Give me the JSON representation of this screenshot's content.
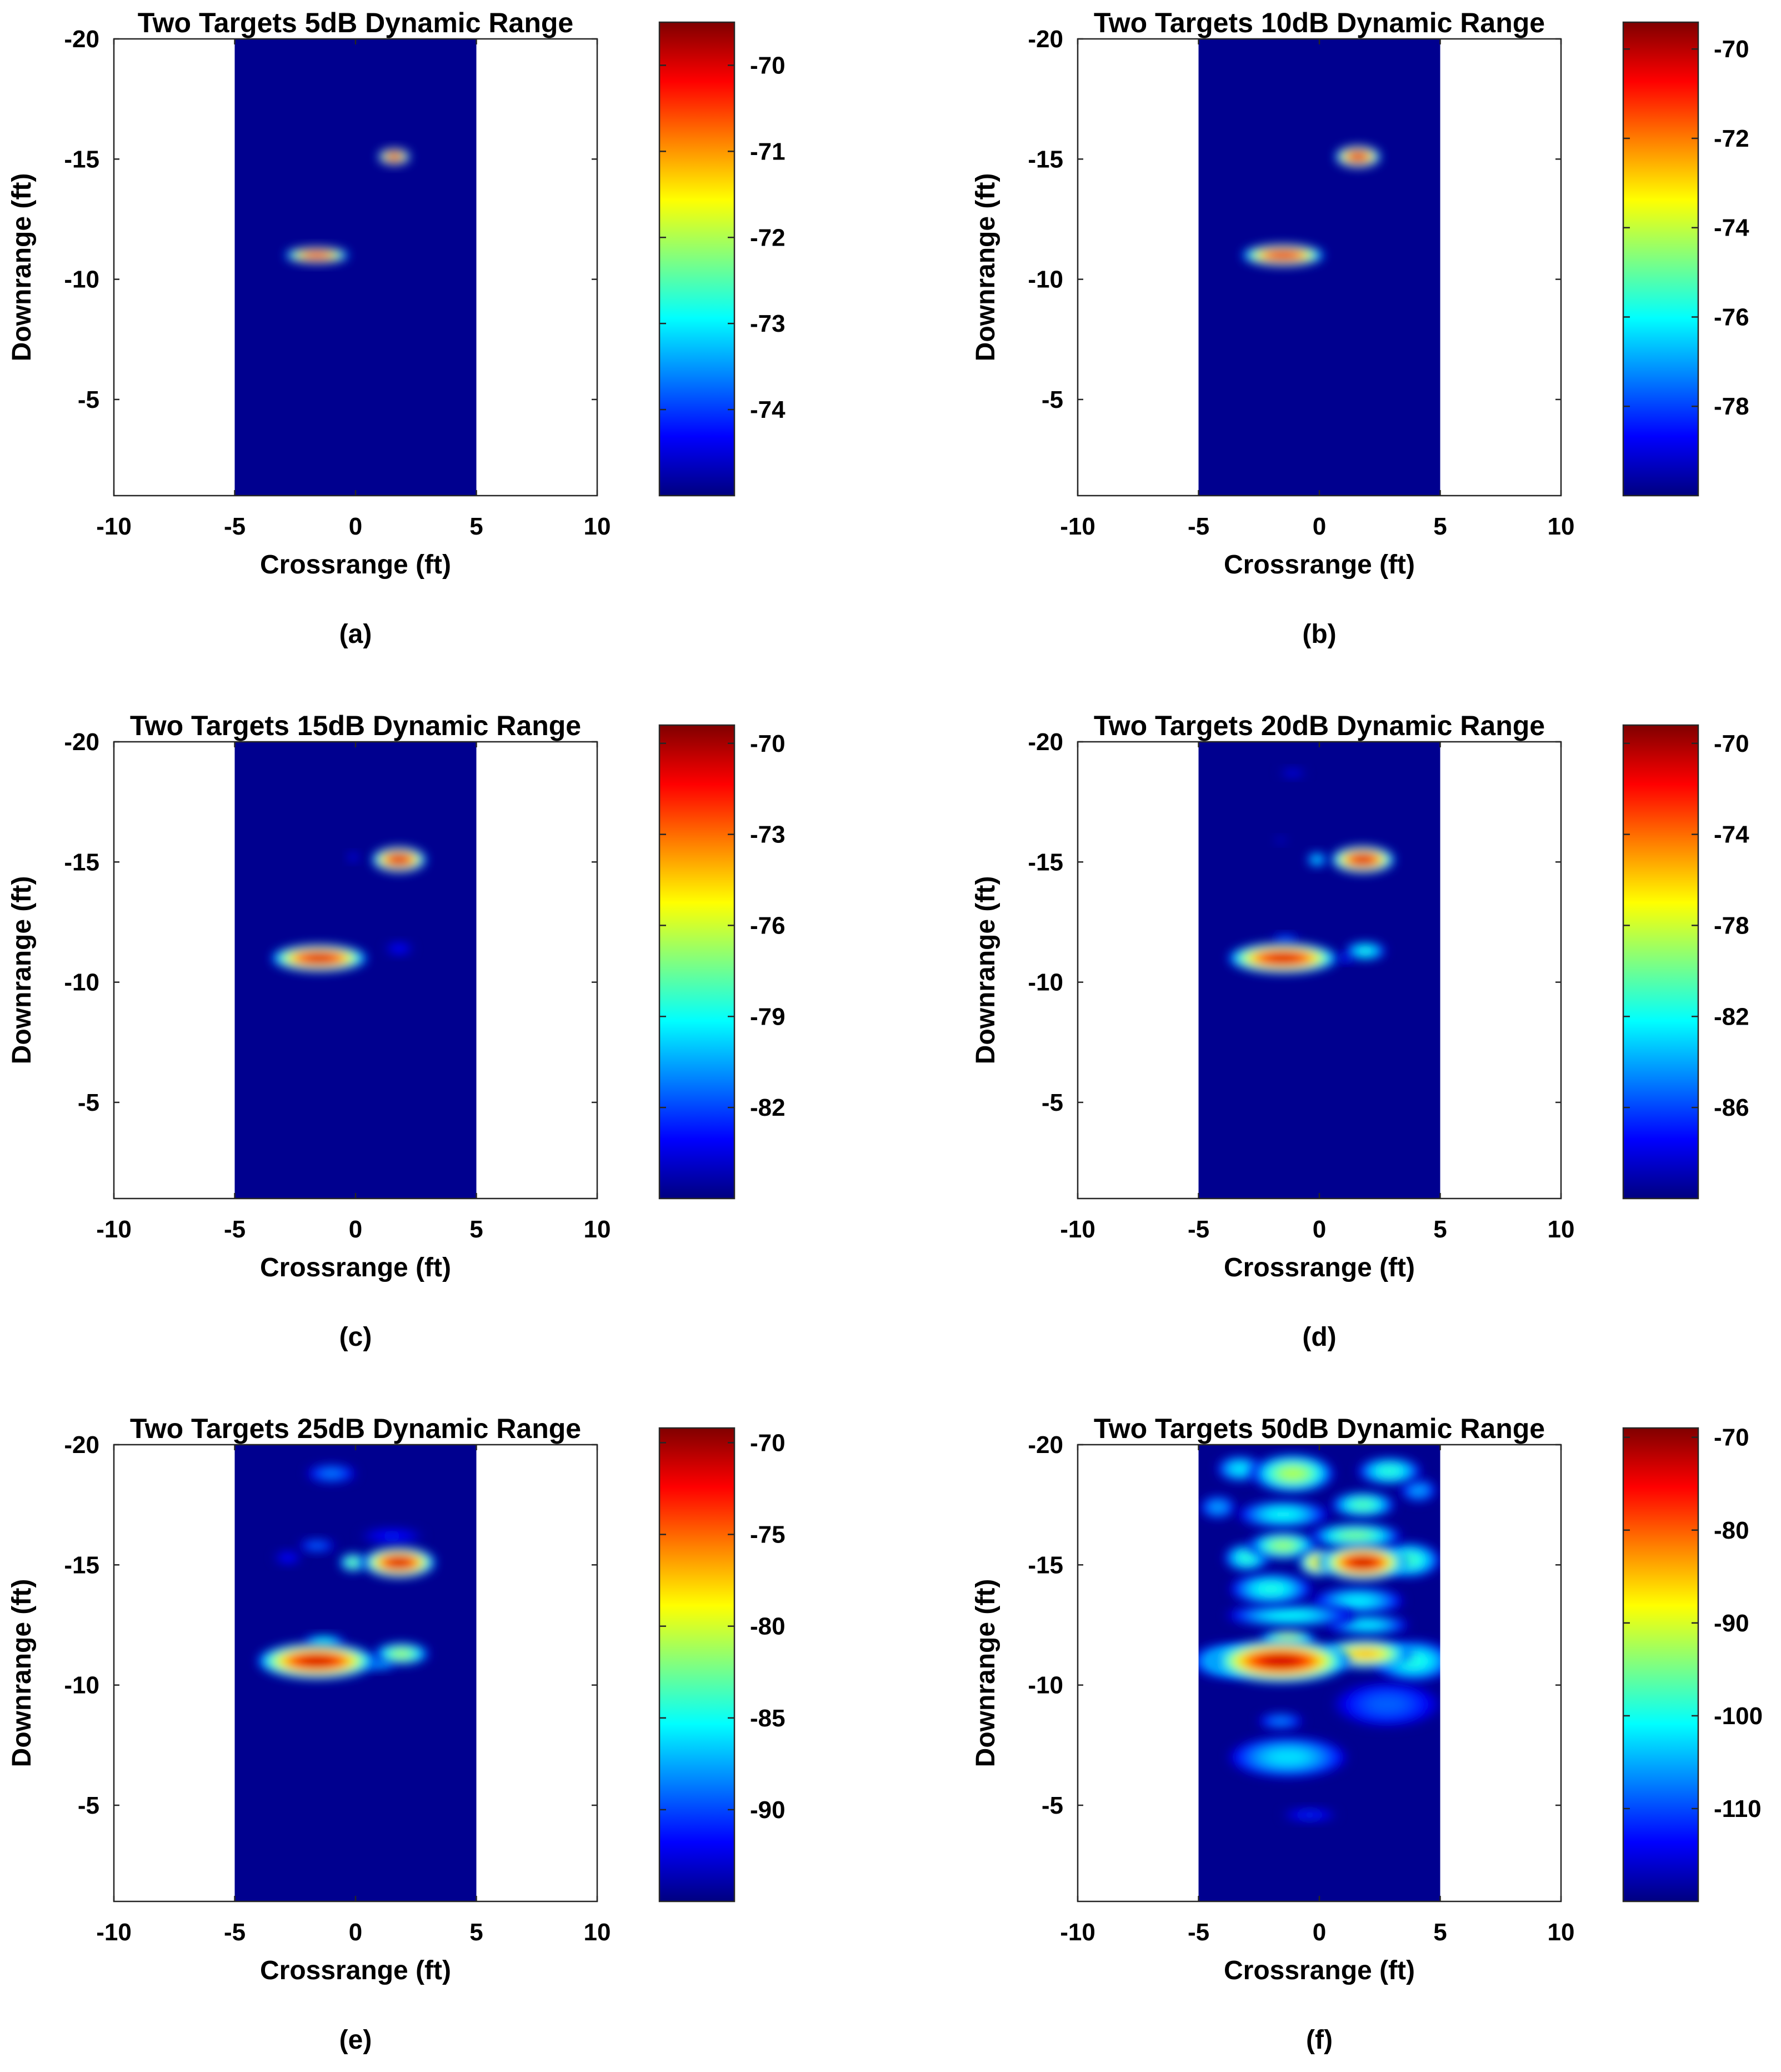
{
  "figure": {
    "colormap": "jet",
    "background": "#ffffff",
    "image_fill_color": "#00008f"
  },
  "chart_data": [
    {
      "panel_label": "(a)",
      "type": "heatmap",
      "title": "Two Targets 5dB Dynamic Range",
      "xlabel": "Crossrange (ft)",
      "ylabel": "Downrange (ft)",
      "xlim": [
        -10,
        10
      ],
      "ylim": [
        -1,
        -20
      ],
      "xticks": [
        -10,
        -5,
        0,
        5,
        10
      ],
      "yticks": [
        -20,
        -15,
        -10,
        -5
      ],
      "image_x_extent": [
        -5,
        5
      ],
      "colorbar": {
        "range": [
          -75,
          -69.5
        ],
        "ticks": [
          -70,
          -71,
          -72,
          -73,
          -74
        ]
      },
      "blobs": [
        {
          "x": 1.6,
          "y": -15.1,
          "sx": 0.35,
          "sy": 0.18,
          "db": -69.6
        },
        {
          "x": -1.6,
          "y": -11.0,
          "sx": 0.7,
          "sy": 0.18,
          "db": -69.8
        }
      ]
    },
    {
      "panel_label": "(b)",
      "type": "heatmap",
      "title": "Two Targets 10dB Dynamic Range",
      "xlabel": "Crossrange (ft)",
      "ylabel": "Downrange (ft)",
      "xlim": [
        -10,
        10
      ],
      "ylim": [
        -1,
        -20
      ],
      "xticks": [
        -10,
        -5,
        0,
        5,
        10
      ],
      "yticks": [
        -20,
        -15,
        -10,
        -5
      ],
      "image_x_extent": [
        -5,
        5
      ],
      "colorbar": {
        "range": [
          -80,
          -69.4
        ],
        "ticks": [
          -70,
          -72,
          -74,
          -76,
          -78
        ]
      },
      "blobs": [
        {
          "x": 1.6,
          "y": -15.1,
          "sx": 0.5,
          "sy": 0.24,
          "db": -69.5
        },
        {
          "x": -1.5,
          "y": -11.0,
          "sx": 0.9,
          "sy": 0.24,
          "db": -69.7
        }
      ]
    },
    {
      "panel_label": "(c)",
      "type": "heatmap",
      "title": "Two Targets 15dB Dynamic Range",
      "xlabel": "Crossrange (ft)",
      "ylabel": "Downrange (ft)",
      "xlim": [
        -10,
        10
      ],
      "ylim": [
        -1,
        -20
      ],
      "xticks": [
        -10,
        -5,
        0,
        5,
        10
      ],
      "yticks": [
        -20,
        -15,
        -10,
        -5
      ],
      "image_x_extent": [
        -5,
        5
      ],
      "colorbar": {
        "range": [
          -85,
          -69.4
        ],
        "ticks": [
          -70,
          -73,
          -76,
          -79,
          -82
        ]
      },
      "blobs": [
        {
          "x": 1.8,
          "y": -15.1,
          "sx": 0.6,
          "sy": 0.28,
          "db": -69.5
        },
        {
          "x": -1.5,
          "y": -11.0,
          "sx": 1.05,
          "sy": 0.3,
          "db": -69.6
        },
        {
          "x": 1.8,
          "y": -11.4,
          "sx": 0.3,
          "sy": 0.14,
          "db": -82.5
        },
        {
          "x": -0.1,
          "y": -15.2,
          "sx": 0.12,
          "sy": 0.1,
          "db": -82.5
        }
      ]
    },
    {
      "panel_label": "(d)",
      "type": "heatmap",
      "title": "Two Targets 20dB Dynamic Range",
      "xlabel": "Crossrange (ft)",
      "ylabel": "Downrange (ft)",
      "xlim": [
        -10,
        10
      ],
      "ylim": [
        -1,
        -20
      ],
      "xticks": [
        -10,
        -5,
        0,
        5,
        10
      ],
      "yticks": [
        -20,
        -15,
        -10,
        -5
      ],
      "image_x_extent": [
        -5,
        5
      ],
      "colorbar": {
        "range": [
          -90,
          -69.2
        ],
        "ticks": [
          -70,
          -74,
          -78,
          -82,
          -86
        ]
      },
      "blobs": [
        {
          "x": 1.8,
          "y": -15.1,
          "sx": 0.7,
          "sy": 0.3,
          "db": -69.5
        },
        {
          "x": -1.5,
          "y": -11.0,
          "sx": 1.2,
          "sy": 0.34,
          "db": -69.6
        },
        {
          "x": 1.9,
          "y": -11.3,
          "sx": 0.45,
          "sy": 0.2,
          "db": -81.0
        },
        {
          "x": -0.1,
          "y": -15.1,
          "sx": 0.22,
          "sy": 0.16,
          "db": -82.0
        },
        {
          "x": -1.4,
          "y": -11.8,
          "sx": 0.3,
          "sy": 0.1,
          "db": -85.0
        },
        {
          "x": 1.1,
          "y": -11.0,
          "sx": 0.2,
          "sy": 0.1,
          "db": -86.0
        },
        {
          "x": -1.1,
          "y": -18.7,
          "sx": 0.3,
          "sy": 0.1,
          "db": -87.5
        },
        {
          "x": -1.6,
          "y": -15.9,
          "sx": 0.15,
          "sy": 0.08,
          "db": -88.0
        }
      ]
    },
    {
      "panel_label": "(e)",
      "type": "heatmap",
      "title": "Two Targets 25dB Dynamic Range",
      "xlabel": "Crossrange (ft)",
      "ylabel": "Downrange (ft)",
      "xlim": [
        -10,
        10
      ],
      "ylim": [
        -1,
        -20
      ],
      "xticks": [
        -10,
        -5,
        0,
        5,
        10
      ],
      "yticks": [
        -20,
        -15,
        -10,
        -5
      ],
      "image_x_extent": [
        -5,
        5
      ],
      "colorbar": {
        "range": [
          -95,
          -69.2
        ],
        "ticks": [
          -70,
          -75,
          -80,
          -85,
          -90
        ]
      },
      "blobs": [
        {
          "x": 1.8,
          "y": -15.1,
          "sx": 0.8,
          "sy": 0.34,
          "db": -69.5
        },
        {
          "x": -1.6,
          "y": -11.0,
          "sx": 1.3,
          "sy": 0.4,
          "db": -69.6
        },
        {
          "x": 1.9,
          "y": -11.3,
          "sx": 0.6,
          "sy": 0.24,
          "db": -80.0
        },
        {
          "x": -0.1,
          "y": -15.1,
          "sx": 0.3,
          "sy": 0.2,
          "db": -81.0
        },
        {
          "x": -1.3,
          "y": -11.8,
          "sx": 0.45,
          "sy": 0.14,
          "db": -84.0
        },
        {
          "x": 1.0,
          "y": -10.9,
          "sx": 0.35,
          "sy": 0.14,
          "db": -86.0
        },
        {
          "x": -1.0,
          "y": -18.8,
          "sx": 0.55,
          "sy": 0.2,
          "db": -88.0
        },
        {
          "x": -1.6,
          "y": -15.8,
          "sx": 0.4,
          "sy": 0.14,
          "db": -88.5
        },
        {
          "x": 1.5,
          "y": -16.2,
          "sx": 0.7,
          "sy": 0.18,
          "db": -91.0
        },
        {
          "x": -2.8,
          "y": -15.3,
          "sx": 0.3,
          "sy": 0.15,
          "db": -91.0
        }
      ]
    },
    {
      "panel_label": "(f)",
      "type": "heatmap",
      "title": "Two Targets 50dB Dynamic Range",
      "xlabel": "Crossrange (ft)",
      "ylabel": "Downrange (ft)",
      "xlim": [
        -10,
        10
      ],
      "ylim": [
        -1,
        -20
      ],
      "xticks": [
        -10,
        -5,
        0,
        5,
        10
      ],
      "yticks": [
        -20,
        -15,
        -10,
        -5
      ],
      "image_x_extent": [
        -5,
        5
      ],
      "colorbar": {
        "range": [
          -120,
          -69
        ],
        "ticks": [
          -70,
          -80,
          -90,
          -100,
          -110
        ]
      },
      "blobs": [
        {
          "x": 1.8,
          "y": -15.1,
          "sx": 0.95,
          "sy": 0.4,
          "db": -69.5
        },
        {
          "x": -1.6,
          "y": -11.0,
          "sx": 1.5,
          "sy": 0.48,
          "db": -69.6
        },
        {
          "x": 1.9,
          "y": -11.3,
          "sx": 1.0,
          "sy": 0.32,
          "db": -82.0
        },
        {
          "x": -0.1,
          "y": -15.1,
          "sx": 0.4,
          "sy": 0.3,
          "db": -84.0
        },
        {
          "x": -1.3,
          "y": -11.9,
          "sx": 0.6,
          "sy": 0.2,
          "db": -88.0
        },
        {
          "x": -1.1,
          "y": -18.8,
          "sx": 0.9,
          "sy": 0.42,
          "db": -90.0
        },
        {
          "x": -1.5,
          "y": -15.8,
          "sx": 0.75,
          "sy": 0.3,
          "db": -91.0
        },
        {
          "x": 1.5,
          "y": -16.2,
          "sx": 1.0,
          "sy": 0.28,
          "db": -93.0
        },
        {
          "x": -3.0,
          "y": -15.3,
          "sx": 0.5,
          "sy": 0.3,
          "db": -97.0
        },
        {
          "x": 3.7,
          "y": -15.2,
          "sx": 0.7,
          "sy": 0.38,
          "db": -96.0
        },
        {
          "x": 3.9,
          "y": -11.0,
          "sx": 0.9,
          "sy": 0.45,
          "db": -98.0
        },
        {
          "x": -3.8,
          "y": -11.0,
          "sx": 0.8,
          "sy": 0.38,
          "db": -98.0
        },
        {
          "x": 1.8,
          "y": -17.5,
          "sx": 0.7,
          "sy": 0.28,
          "db": -95.0
        },
        {
          "x": 2.9,
          "y": -18.9,
          "sx": 0.7,
          "sy": 0.3,
          "db": -97.0
        },
        {
          "x": -3.3,
          "y": -19.0,
          "sx": 0.5,
          "sy": 0.28,
          "db": -100.0
        },
        {
          "x": -1.5,
          "y": -17.1,
          "sx": 1.0,
          "sy": 0.3,
          "db": -99.0
        },
        {
          "x": -2.0,
          "y": -14.0,
          "sx": 0.9,
          "sy": 0.35,
          "db": -98.0
        },
        {
          "x": 1.6,
          "y": -13.5,
          "sx": 1.0,
          "sy": 0.3,
          "db": -100.0
        },
        {
          "x": -1.2,
          "y": -12.9,
          "sx": 1.4,
          "sy": 0.25,
          "db": -99.0
        },
        {
          "x": 2.0,
          "y": -12.5,
          "sx": 0.9,
          "sy": 0.22,
          "db": -100.0
        },
        {
          "x": -1.3,
          "y": -7.0,
          "sx": 1.3,
          "sy": 0.45,
          "db": -101.0
        },
        {
          "x": -1.6,
          "y": -8.5,
          "sx": 0.5,
          "sy": 0.18,
          "db": -106.0
        },
        {
          "x": -0.4,
          "y": -4.6,
          "sx": 0.6,
          "sy": 0.14,
          "db": -111.0
        },
        {
          "x": 4.1,
          "y": -18.1,
          "sx": 0.4,
          "sy": 0.25,
          "db": -104.0
        },
        {
          "x": -4.2,
          "y": -17.4,
          "sx": 0.4,
          "sy": 0.25,
          "db": -104.0
        },
        {
          "x": 2.8,
          "y": -9.2,
          "sx": 1.2,
          "sy": 0.5,
          "db": -108.0
        }
      ]
    }
  ]
}
